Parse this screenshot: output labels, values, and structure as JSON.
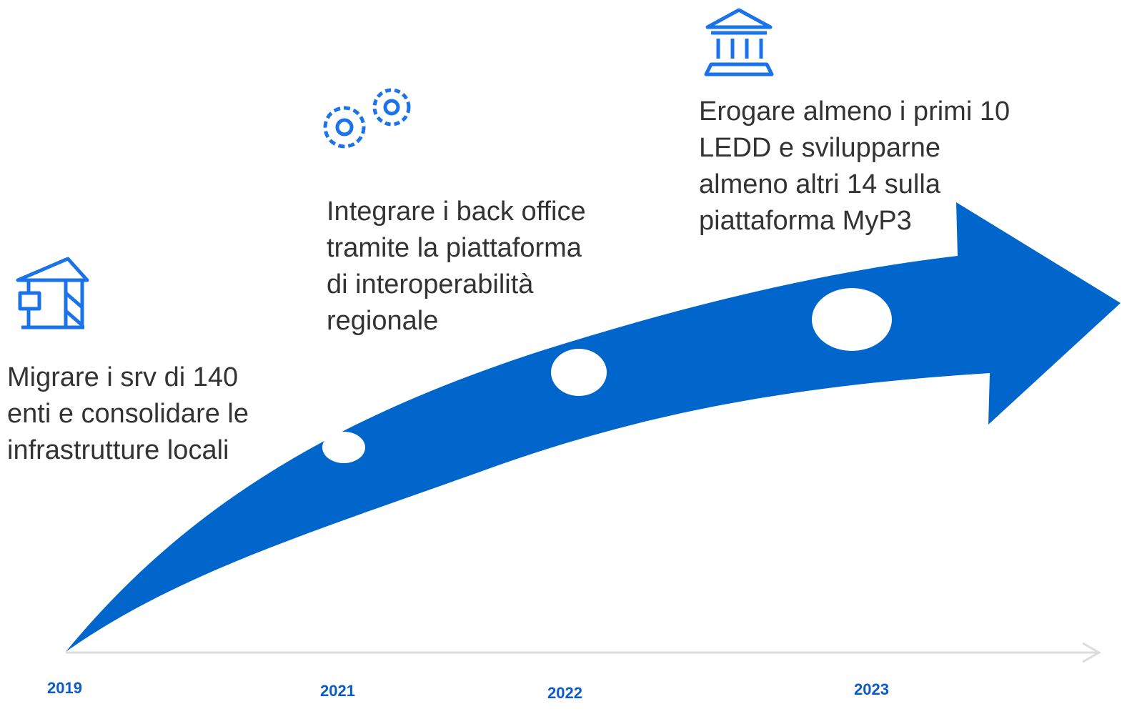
{
  "milestones": [
    {
      "text": [
        "Migrare i srv di  140",
        "enti e consolidare le",
        "infrastrutture locali"
      ]
    },
    {
      "text": [
        "Integrare i back office",
        "tramite la piattaforma",
        "di interoperabilità",
        "regionale"
      ]
    },
    {
      "text": [
        "Erogare almeno i primi 10",
        "LEDD e svilupparne",
        "almeno altri 14 sulla",
        "piattaforma MyP3"
      ]
    }
  ],
  "years": [
    "2019",
    "2021",
    "2022",
    "2023"
  ]
}
